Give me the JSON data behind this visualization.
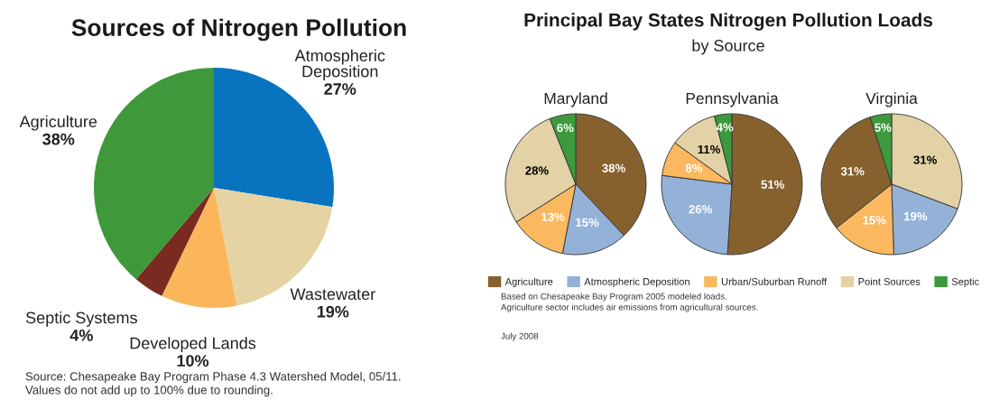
{
  "chart_data": [
    {
      "type": "pie",
      "title": "Sources of Nitrogen Pollution",
      "categories": [
        "Atmospheric Deposition",
        "Wastewater",
        "Developed Lands",
        "Septic Systems",
        "Agriculture"
      ],
      "values": [
        27,
        19,
        10,
        4,
        38
      ],
      "value_labels": [
        "27%",
        "19%",
        "10%",
        "4%",
        "38%"
      ],
      "colors": [
        "#0873bf",
        "#e6d3a4",
        "#fbb65b",
        "#7a2a1f",
        "#3f983a"
      ],
      "annotations": [
        "Source: Chesapeake Bay Program Phase 4.3 Watershed Model, 05/11.",
        "Values do not add up to 100% due to rounding."
      ]
    },
    {
      "type": "other",
      "title": "Principal Bay States Nitrogen Pollution Loads",
      "subtitle": "by Source",
      "annotations": [
        "Based on Chesapeake Bay Program 2005 modeled loads.",
        "Agriculture sector includes air emissions from agricultural sources.",
        "July 2008"
      ]
    },
    {
      "type": "pie",
      "title": "Maryland",
      "legend": "bottom",
      "categories": [
        "Agriculture",
        "Atmospheric Deposition",
        "Urban/Suburban Runoff",
        "Point Sources",
        "Septic"
      ],
      "values": [
        38,
        15,
        13,
        28,
        6
      ],
      "value_labels": [
        "38%",
        "15%",
        "13%",
        "28%",
        "6%"
      ],
      "colors": [
        "#86612e",
        "#94b2d8",
        "#fbb85f",
        "#e3d2a5",
        "#3c9a3c"
      ]
    },
    {
      "type": "pie",
      "title": "Pennsylvania",
      "categories": [
        null,
        null,
        null,
        null,
        null
      ],
      "values": [
        51,
        26,
        8,
        11,
        4
      ],
      "value_labels": [
        "51%",
        "26%",
        "8%",
        "11%",
        "4%"
      ],
      "colors": [
        "#86612e",
        "#94b2d8",
        "#fbb85f",
        "#e3d2a5",
        "#3c9a3c"
      ]
    },
    {
      "type": "pie",
      "title": "Virginia",
      "categories": [
        null,
        null,
        null,
        null,
        null
      ],
      "values": [
        31,
        19,
        15,
        31,
        5
      ],
      "value_labels": [
        "31%",
        "19%",
        "15%",
        "31%",
        "5%"
      ],
      "colors": [
        "#e3d2a5",
        "#94b2d8",
        "#fbb85f",
        "#86612e",
        "#3c9a3c"
      ]
    }
  ]
}
